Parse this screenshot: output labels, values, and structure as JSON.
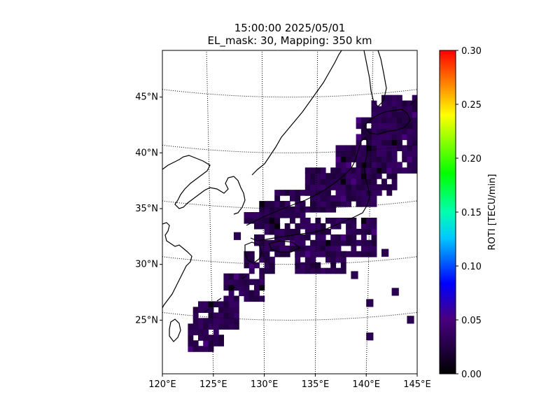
{
  "chart_data": {
    "type": "heatmap",
    "title_line1": "15:00:00 2025/05/01",
    "title_line2": "EL_mask: 30, Mapping: 350 km",
    "map": {
      "lon_range": [
        120,
        145
      ],
      "lat_range": [
        20,
        49
      ],
      "projection": "conic",
      "grid": "dotted",
      "x_ticks": [
        "120°E",
        "125°E",
        "130°E",
        "135°E",
        "140°E",
        "145°E"
      ],
      "x_tick_values": [
        120,
        125,
        130,
        135,
        140,
        145
      ],
      "y_ticks": [
        "25°N",
        "30°N",
        "35°N",
        "40°N",
        "45°N"
      ],
      "y_tick_values": [
        25,
        30,
        35,
        40,
        45
      ]
    },
    "colorbar": {
      "label": "ROTI [TECU/min]",
      "min": 0.0,
      "max": 0.3,
      "ticks": [
        "0.00",
        "0.05",
        "0.10",
        "0.15",
        "0.20",
        "0.25",
        "0.30"
      ],
      "tick_values": [
        0.0,
        0.05,
        0.1,
        0.15,
        0.2,
        0.25,
        0.3
      ],
      "colormap": [
        "#000000",
        "#3a0060",
        "#0000ff",
        "#00ffff",
        "#00ff00",
        "#ffff00",
        "#ff0000"
      ]
    },
    "roti_typical": 0.03,
    "roti_max_observed": 0.05
  }
}
